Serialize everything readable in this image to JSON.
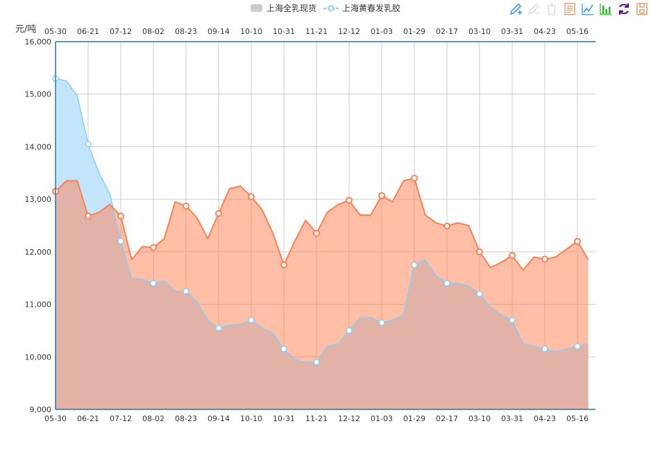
{
  "legend": [
    {
      "label": "上海全乳现货",
      "color": "#cccccc",
      "icon": "rounded-rect"
    },
    {
      "label": "上海黄春发乳胶",
      "color": "#87cefa",
      "icon": "line-circle"
    }
  ],
  "toolbox": [
    "mark-icon",
    "mark-undo-icon",
    "mark-clear-icon",
    "data-view-icon",
    "line-icon",
    "bar-icon",
    "restore-icon",
    "save-image-icon"
  ],
  "chart_data": {
    "type": "area",
    "ylabel": "元/吨",
    "ylim": [
      9000,
      16000
    ],
    "yticks": [
      "9,000",
      "10,000",
      "11,000",
      "12,000",
      "13,000",
      "14,000",
      "15,000",
      "16,000"
    ],
    "xticks": [
      "05-30",
      "06-21",
      "07-12",
      "08-02",
      "08-23",
      "09-14",
      "10-10",
      "10-31",
      "11-21",
      "12-12",
      "01-03",
      "01-29",
      "02-17",
      "03-10",
      "03-31",
      "04-23",
      "05-16"
    ],
    "grid": true,
    "legend_position": "top",
    "points_per_tick_interval": 3,
    "series": [
      {
        "name": "上海全乳现货",
        "color": "#ff7f50",
        "values": [
          13150,
          13350,
          13350,
          12680,
          12750,
          12900,
          12680,
          11850,
          12100,
          12080,
          12250,
          12950,
          12870,
          12650,
          12250,
          12730,
          13200,
          13250,
          13050,
          12800,
          12350,
          11750,
          12200,
          12600,
          12350,
          12750,
          12900,
          12980,
          12700,
          12700,
          13070,
          12950,
          13350,
          13400,
          12700,
          12550,
          12490,
          12550,
          12500,
          12000,
          11700,
          11800,
          11930,
          11650,
          11900,
          11860,
          11900,
          12050,
          12200,
          11850
        ]
      },
      {
        "name": "上海黄春发乳胶",
        "color": "#87cefa",
        "values": [
          15300,
          15250,
          14970,
          14050,
          13500,
          13100,
          12200,
          11500,
          11480,
          11400,
          11450,
          11250,
          11250,
          11050,
          10700,
          10550,
          10600,
          10620,
          10700,
          10550,
          10450,
          10150,
          9950,
          9900,
          9900,
          10200,
          10250,
          10500,
          10750,
          10750,
          10650,
          10700,
          10800,
          11750,
          11850,
          11550,
          11400,
          11400,
          11350,
          11200,
          10950,
          10800,
          10700,
          10250,
          10200,
          10150,
          10100,
          10150,
          10200,
          10250
        ]
      }
    ]
  }
}
